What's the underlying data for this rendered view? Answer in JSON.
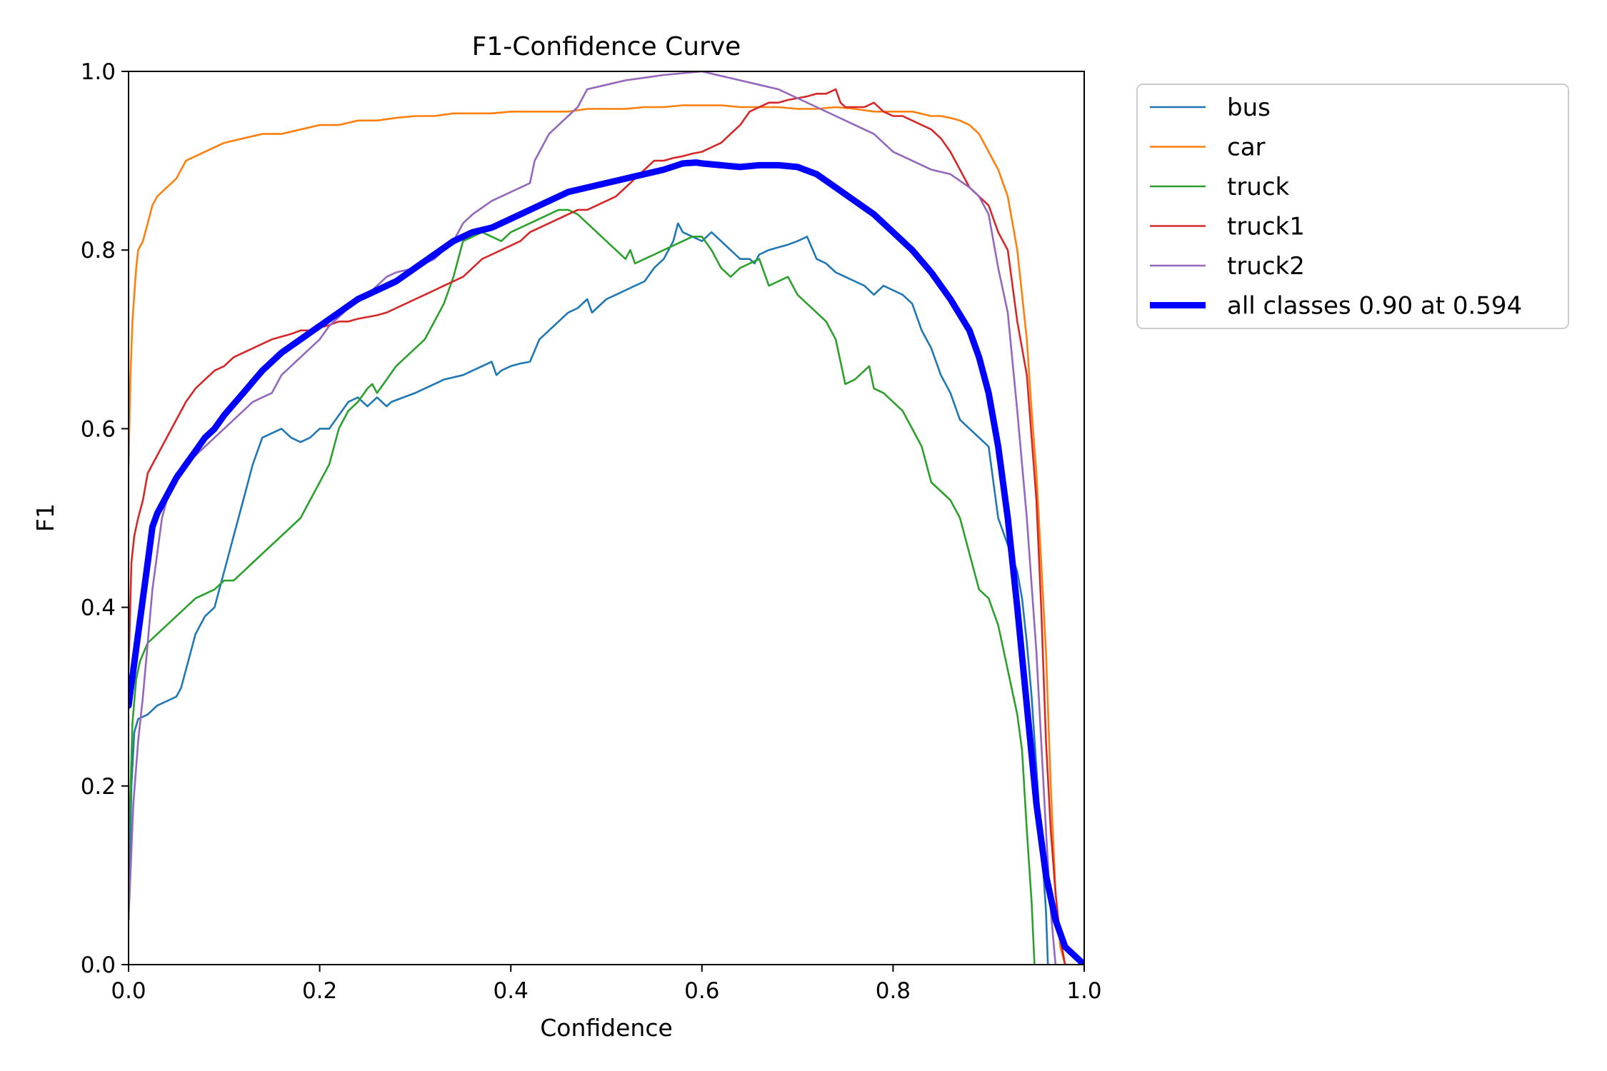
{
  "chart_data": {
    "type": "line",
    "title": "F1-Confidence Curve",
    "xlabel": "Confidence",
    "ylabel": "F1",
    "xlim": [
      0,
      1
    ],
    "ylim": [
      0,
      1
    ],
    "x_ticks": [
      "0.0",
      "0.2",
      "0.4",
      "0.6",
      "0.8",
      "1.0"
    ],
    "y_ticks": [
      "0.0",
      "0.2",
      "0.4",
      "0.6",
      "0.8",
      "1.0"
    ],
    "grid": false,
    "legend_position": "outside-top-right",
    "series": [
      {
        "name": "bus",
        "color": "#1f77b4",
        "x": [
          0.0,
          0.003,
          0.006,
          0.01,
          0.02,
          0.03,
          0.04,
          0.05,
          0.055,
          0.06,
          0.065,
          0.07,
          0.08,
          0.085,
          0.09,
          0.095,
          0.1,
          0.11,
          0.12,
          0.13,
          0.14,
          0.15,
          0.16,
          0.17,
          0.18,
          0.19,
          0.2,
          0.21,
          0.22,
          0.23,
          0.24,
          0.25,
          0.26,
          0.27,
          0.275,
          0.3,
          0.31,
          0.32,
          0.33,
          0.35,
          0.36,
          0.37,
          0.38,
          0.385,
          0.39,
          0.4,
          0.41,
          0.42,
          0.43,
          0.44,
          0.45,
          0.46,
          0.47,
          0.48,
          0.485,
          0.49,
          0.5,
          0.51,
          0.52,
          0.53,
          0.54,
          0.55,
          0.56,
          0.57,
          0.575,
          0.58,
          0.59,
          0.6,
          0.61,
          0.62,
          0.63,
          0.64,
          0.65,
          0.655,
          0.66,
          0.67,
          0.68,
          0.69,
          0.7,
          0.71,
          0.72,
          0.73,
          0.74,
          0.75,
          0.76,
          0.77,
          0.78,
          0.79,
          0.8,
          0.81,
          0.82,
          0.83,
          0.84,
          0.85,
          0.86,
          0.87,
          0.88,
          0.89,
          0.9,
          0.91,
          0.92,
          0.93,
          0.935,
          0.94,
          0.945,
          0.95,
          0.955,
          0.96,
          0.962
        ],
        "y": [
          0.05,
          0.2,
          0.26,
          0.275,
          0.28,
          0.29,
          0.295,
          0.3,
          0.31,
          0.33,
          0.35,
          0.37,
          0.39,
          0.395,
          0.4,
          0.42,
          0.44,
          0.48,
          0.52,
          0.56,
          0.59,
          0.595,
          0.6,
          0.59,
          0.585,
          0.59,
          0.6,
          0.6,
          0.615,
          0.63,
          0.635,
          0.625,
          0.635,
          0.625,
          0.63,
          0.64,
          0.645,
          0.65,
          0.655,
          0.66,
          0.665,
          0.67,
          0.675,
          0.66,
          0.665,
          0.67,
          0.673,
          0.675,
          0.7,
          0.71,
          0.72,
          0.73,
          0.735,
          0.745,
          0.73,
          0.735,
          0.745,
          0.75,
          0.755,
          0.76,
          0.765,
          0.78,
          0.79,
          0.81,
          0.83,
          0.82,
          0.815,
          0.81,
          0.82,
          0.81,
          0.8,
          0.79,
          0.79,
          0.785,
          0.795,
          0.8,
          0.803,
          0.806,
          0.81,
          0.815,
          0.79,
          0.785,
          0.775,
          0.77,
          0.765,
          0.76,
          0.75,
          0.76,
          0.755,
          0.75,
          0.74,
          0.71,
          0.69,
          0.66,
          0.64,
          0.61,
          0.6,
          0.59,
          0.58,
          0.5,
          0.47,
          0.44,
          0.41,
          0.36,
          0.3,
          0.22,
          0.14,
          0.06,
          0.0
        ]
      },
      {
        "name": "car",
        "color": "#ff7f0e",
        "x": [
          0.0,
          0.002,
          0.004,
          0.006,
          0.008,
          0.01,
          0.015,
          0.02,
          0.025,
          0.03,
          0.04,
          0.05,
          0.06,
          0.07,
          0.08,
          0.09,
          0.1,
          0.12,
          0.14,
          0.16,
          0.18,
          0.2,
          0.22,
          0.24,
          0.26,
          0.28,
          0.3,
          0.32,
          0.34,
          0.36,
          0.38,
          0.4,
          0.42,
          0.44,
          0.46,
          0.48,
          0.5,
          0.52,
          0.54,
          0.56,
          0.58,
          0.6,
          0.62,
          0.64,
          0.66,
          0.68,
          0.7,
          0.72,
          0.74,
          0.76,
          0.78,
          0.8,
          0.82,
          0.84,
          0.85,
          0.86,
          0.87,
          0.88,
          0.89,
          0.9,
          0.91,
          0.92,
          0.93,
          0.94,
          0.945,
          0.95,
          0.955,
          0.96,
          0.965,
          0.97,
          0.975,
          0.98,
          0.985,
          0.99
        ],
        "y": [
          0.56,
          0.66,
          0.72,
          0.75,
          0.78,
          0.8,
          0.81,
          0.83,
          0.85,
          0.86,
          0.87,
          0.88,
          0.9,
          0.905,
          0.91,
          0.915,
          0.92,
          0.925,
          0.93,
          0.93,
          0.935,
          0.94,
          0.94,
          0.945,
          0.945,
          0.948,
          0.95,
          0.95,
          0.953,
          0.953,
          0.953,
          0.955,
          0.955,
          0.955,
          0.955,
          0.958,
          0.958,
          0.958,
          0.96,
          0.96,
          0.962,
          0.962,
          0.962,
          0.96,
          0.96,
          0.96,
          0.958,
          0.958,
          0.96,
          0.958,
          0.955,
          0.955,
          0.955,
          0.95,
          0.95,
          0.948,
          0.945,
          0.94,
          0.93,
          0.91,
          0.89,
          0.86,
          0.8,
          0.7,
          0.62,
          0.55,
          0.45,
          0.35,
          0.2,
          0.08,
          0.02,
          0.0,
          0.0,
          0.0
        ]
      },
      {
        "name": "truck",
        "color": "#2ca02c",
        "x": [
          0.0,
          0.004,
          0.008,
          0.012,
          0.02,
          0.03,
          0.04,
          0.05,
          0.06,
          0.07,
          0.08,
          0.09,
          0.1,
          0.11,
          0.12,
          0.13,
          0.14,
          0.15,
          0.16,
          0.17,
          0.18,
          0.19,
          0.2,
          0.21,
          0.22,
          0.23,
          0.24,
          0.25,
          0.255,
          0.26,
          0.27,
          0.28,
          0.29,
          0.3,
          0.31,
          0.32,
          0.33,
          0.34,
          0.35,
          0.36,
          0.37,
          0.38,
          0.39,
          0.4,
          0.41,
          0.42,
          0.43,
          0.44,
          0.45,
          0.46,
          0.47,
          0.48,
          0.49,
          0.5,
          0.51,
          0.52,
          0.525,
          0.53,
          0.54,
          0.55,
          0.56,
          0.57,
          0.58,
          0.59,
          0.6,
          0.61,
          0.62,
          0.63,
          0.64,
          0.65,
          0.66,
          0.67,
          0.68,
          0.69,
          0.7,
          0.71,
          0.72,
          0.73,
          0.74,
          0.75,
          0.76,
          0.77,
          0.775,
          0.78,
          0.79,
          0.8,
          0.81,
          0.82,
          0.83,
          0.84,
          0.85,
          0.86,
          0.87,
          0.88,
          0.89,
          0.9,
          0.91,
          0.92,
          0.93,
          0.935,
          0.94,
          0.945,
          0.948
        ],
        "y": [
          0.12,
          0.27,
          0.32,
          0.34,
          0.36,
          0.37,
          0.38,
          0.39,
          0.4,
          0.41,
          0.415,
          0.42,
          0.43,
          0.43,
          0.44,
          0.45,
          0.46,
          0.47,
          0.48,
          0.49,
          0.5,
          0.52,
          0.54,
          0.56,
          0.6,
          0.62,
          0.63,
          0.645,
          0.65,
          0.64,
          0.655,
          0.67,
          0.68,
          0.69,
          0.7,
          0.72,
          0.74,
          0.77,
          0.81,
          0.815,
          0.82,
          0.815,
          0.81,
          0.82,
          0.825,
          0.83,
          0.835,
          0.84,
          0.845,
          0.845,
          0.84,
          0.83,
          0.82,
          0.81,
          0.8,
          0.79,
          0.8,
          0.785,
          0.79,
          0.795,
          0.8,
          0.805,
          0.81,
          0.815,
          0.815,
          0.8,
          0.78,
          0.77,
          0.78,
          0.785,
          0.79,
          0.76,
          0.765,
          0.77,
          0.75,
          0.74,
          0.73,
          0.72,
          0.7,
          0.65,
          0.655,
          0.665,
          0.67,
          0.645,
          0.64,
          0.63,
          0.62,
          0.6,
          0.58,
          0.54,
          0.53,
          0.52,
          0.5,
          0.46,
          0.42,
          0.41,
          0.38,
          0.33,
          0.28,
          0.24,
          0.15,
          0.07,
          0.0
        ]
      },
      {
        "name": "truck1",
        "color": "#d62728",
        "x": [
          0.0,
          0.003,
          0.006,
          0.01,
          0.015,
          0.02,
          0.03,
          0.04,
          0.05,
          0.06,
          0.07,
          0.08,
          0.09,
          0.1,
          0.11,
          0.12,
          0.13,
          0.14,
          0.15,
          0.16,
          0.17,
          0.18,
          0.19,
          0.2,
          0.21,
          0.22,
          0.23,
          0.24,
          0.25,
          0.26,
          0.27,
          0.28,
          0.29,
          0.3,
          0.31,
          0.32,
          0.33,
          0.34,
          0.35,
          0.36,
          0.37,
          0.38,
          0.39,
          0.4,
          0.41,
          0.42,
          0.43,
          0.44,
          0.45,
          0.46,
          0.47,
          0.48,
          0.49,
          0.5,
          0.51,
          0.52,
          0.53,
          0.54,
          0.55,
          0.56,
          0.57,
          0.58,
          0.59,
          0.6,
          0.61,
          0.62,
          0.63,
          0.64,
          0.65,
          0.66,
          0.67,
          0.68,
          0.69,
          0.7,
          0.71,
          0.72,
          0.73,
          0.74,
          0.745,
          0.75,
          0.76,
          0.77,
          0.78,
          0.79,
          0.8,
          0.81,
          0.82,
          0.83,
          0.84,
          0.85,
          0.86,
          0.87,
          0.88,
          0.89,
          0.9,
          0.91,
          0.92,
          0.93,
          0.94,
          0.95,
          0.955,
          0.96,
          0.965,
          0.97,
          0.975,
          0.98
        ],
        "y": [
          0.33,
          0.45,
          0.48,
          0.5,
          0.52,
          0.55,
          0.57,
          0.59,
          0.61,
          0.63,
          0.645,
          0.655,
          0.665,
          0.67,
          0.68,
          0.685,
          0.69,
          0.695,
          0.7,
          0.703,
          0.706,
          0.71,
          0.71,
          0.713,
          0.716,
          0.72,
          0.72,
          0.723,
          0.725,
          0.727,
          0.73,
          0.735,
          0.74,
          0.745,
          0.75,
          0.755,
          0.76,
          0.765,
          0.77,
          0.78,
          0.79,
          0.795,
          0.8,
          0.805,
          0.81,
          0.82,
          0.825,
          0.83,
          0.835,
          0.84,
          0.845,
          0.845,
          0.85,
          0.855,
          0.86,
          0.87,
          0.88,
          0.89,
          0.9,
          0.9,
          0.903,
          0.905,
          0.908,
          0.91,
          0.915,
          0.92,
          0.93,
          0.94,
          0.955,
          0.96,
          0.965,
          0.965,
          0.968,
          0.97,
          0.972,
          0.975,
          0.975,
          0.98,
          0.965,
          0.96,
          0.96,
          0.96,
          0.965,
          0.955,
          0.95,
          0.95,
          0.945,
          0.94,
          0.935,
          0.925,
          0.91,
          0.89,
          0.87,
          0.86,
          0.85,
          0.82,
          0.8,
          0.72,
          0.66,
          0.52,
          0.4,
          0.25,
          0.15,
          0.08,
          0.03,
          0.0
        ]
      },
      {
        "name": "truck2",
        "color": "#9467bd",
        "x": [
          0.0,
          0.005,
          0.01,
          0.015,
          0.02,
          0.025,
          0.03,
          0.035,
          0.04,
          0.045,
          0.05,
          0.06,
          0.07,
          0.08,
          0.09,
          0.1,
          0.11,
          0.12,
          0.13,
          0.14,
          0.15,
          0.16,
          0.17,
          0.18,
          0.19,
          0.2,
          0.21,
          0.22,
          0.23,
          0.24,
          0.25,
          0.255,
          0.26,
          0.27,
          0.28,
          0.3,
          0.32,
          0.34,
          0.35,
          0.36,
          0.38,
          0.4,
          0.42,
          0.425,
          0.43,
          0.44,
          0.45,
          0.46,
          0.47,
          0.475,
          0.48,
          0.5,
          0.52,
          0.54,
          0.56,
          0.58,
          0.6,
          0.62,
          0.64,
          0.66,
          0.68,
          0.7,
          0.72,
          0.74,
          0.76,
          0.78,
          0.79,
          0.8,
          0.82,
          0.84,
          0.86,
          0.88,
          0.89,
          0.9,
          0.905,
          0.91,
          0.92,
          0.93,
          0.94,
          0.95,
          0.955,
          0.96,
          0.965,
          0.97
        ],
        "y": [
          0.05,
          0.18,
          0.25,
          0.3,
          0.36,
          0.42,
          0.46,
          0.5,
          0.52,
          0.54,
          0.55,
          0.56,
          0.57,
          0.58,
          0.59,
          0.6,
          0.61,
          0.62,
          0.63,
          0.635,
          0.64,
          0.66,
          0.67,
          0.68,
          0.69,
          0.7,
          0.715,
          0.725,
          0.735,
          0.745,
          0.75,
          0.755,
          0.76,
          0.77,
          0.775,
          0.78,
          0.79,
          0.81,
          0.83,
          0.84,
          0.855,
          0.865,
          0.875,
          0.9,
          0.91,
          0.93,
          0.94,
          0.95,
          0.96,
          0.97,
          0.98,
          0.985,
          0.99,
          0.993,
          0.996,
          0.998,
          1.0,
          0.995,
          0.99,
          0.985,
          0.98,
          0.97,
          0.96,
          0.95,
          0.94,
          0.93,
          0.92,
          0.91,
          0.9,
          0.89,
          0.885,
          0.87,
          0.86,
          0.84,
          0.81,
          0.78,
          0.73,
          0.62,
          0.5,
          0.35,
          0.25,
          0.15,
          0.06,
          0.0
        ]
      },
      {
        "name": "all classes 0.90 at 0.594",
        "color": "#0000ff",
        "x": [
          0.0,
          0.005,
          0.01,
          0.015,
          0.02,
          0.025,
          0.03,
          0.04,
          0.05,
          0.06,
          0.07,
          0.08,
          0.09,
          0.1,
          0.12,
          0.14,
          0.16,
          0.18,
          0.2,
          0.22,
          0.24,
          0.26,
          0.28,
          0.3,
          0.32,
          0.34,
          0.36,
          0.38,
          0.4,
          0.42,
          0.44,
          0.46,
          0.48,
          0.5,
          0.52,
          0.54,
          0.56,
          0.58,
          0.594,
          0.6,
          0.62,
          0.64,
          0.66,
          0.68,
          0.7,
          0.72,
          0.74,
          0.76,
          0.78,
          0.8,
          0.82,
          0.84,
          0.86,
          0.88,
          0.89,
          0.9,
          0.91,
          0.92,
          0.93,
          0.94,
          0.95,
          0.96,
          0.97,
          0.98,
          0.99,
          1.0
        ],
        "y": [
          0.29,
          0.33,
          0.37,
          0.41,
          0.45,
          0.49,
          0.505,
          0.525,
          0.545,
          0.56,
          0.575,
          0.59,
          0.6,
          0.615,
          0.64,
          0.665,
          0.685,
          0.7,
          0.715,
          0.73,
          0.745,
          0.755,
          0.765,
          0.78,
          0.795,
          0.81,
          0.82,
          0.825,
          0.835,
          0.845,
          0.855,
          0.865,
          0.87,
          0.875,
          0.88,
          0.885,
          0.89,
          0.897,
          0.898,
          0.897,
          0.895,
          0.893,
          0.895,
          0.895,
          0.893,
          0.885,
          0.87,
          0.855,
          0.84,
          0.82,
          0.8,
          0.775,
          0.745,
          0.71,
          0.68,
          0.64,
          0.58,
          0.5,
          0.4,
          0.29,
          0.18,
          0.1,
          0.05,
          0.02,
          0.01,
          0.0
        ]
      }
    ]
  }
}
